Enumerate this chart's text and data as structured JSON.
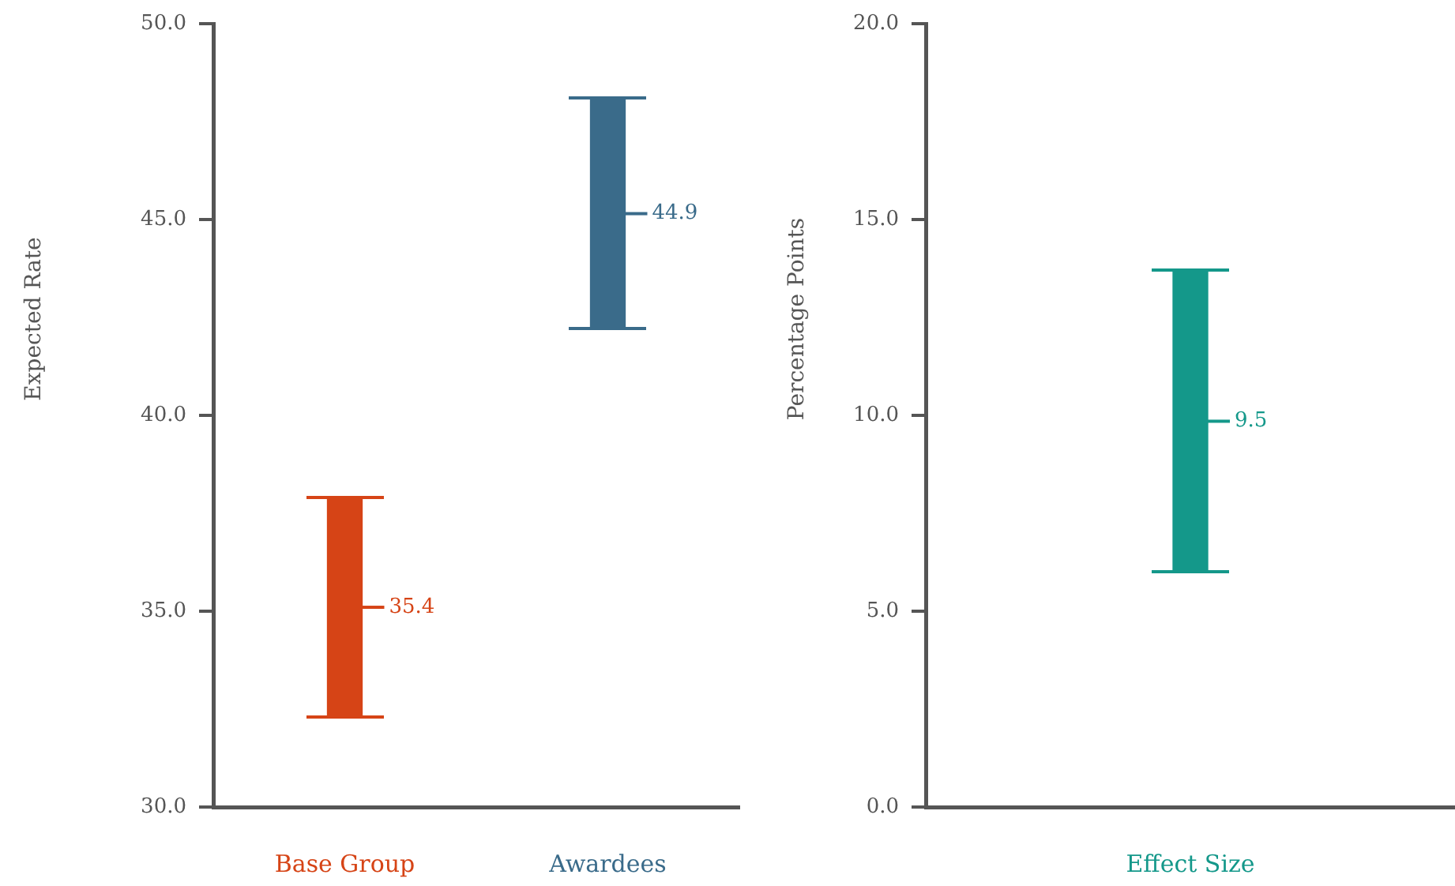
{
  "chart_data": [
    {
      "type": "bar",
      "ylabel": "Expected Rate",
      "categories": [
        "Base Group",
        "Awardees"
      ],
      "base": [
        32.3,
        42.2
      ],
      "values": [
        5.6,
        5.9
      ],
      "colors": [
        "#d64416",
        "#3a6b8a"
      ],
      "annotations": [
        "35.4",
        "44.9"
      ],
      "ylim": [
        30,
        50
      ],
      "yticks": [
        {
          "value": 30,
          "label": "30.0"
        },
        {
          "value": 35,
          "label": "35.0"
        },
        {
          "value": 40,
          "label": "40.0"
        },
        {
          "value": 45,
          "label": "45.0"
        },
        {
          "value": 50,
          "label": "50.0"
        }
      ]
    },
    {
      "type": "bar",
      "ylabel": "Percentage Points",
      "categories": [
        "Effect Size"
      ],
      "base": [
        6.0
      ],
      "values": [
        7.7
      ],
      "colors": [
        "#14988a"
      ],
      "annotations": [
        "9.5"
      ],
      "ylim": [
        0,
        20
      ],
      "yticks": [
        {
          "value": 0,
          "label": "0.0"
        },
        {
          "value": 5,
          "label": "5.0"
        },
        {
          "value": 10,
          "label": "10.0"
        },
        {
          "value": 15,
          "label": "15.0"
        },
        {
          "value": 20,
          "label": "20.0"
        }
      ]
    }
  ]
}
